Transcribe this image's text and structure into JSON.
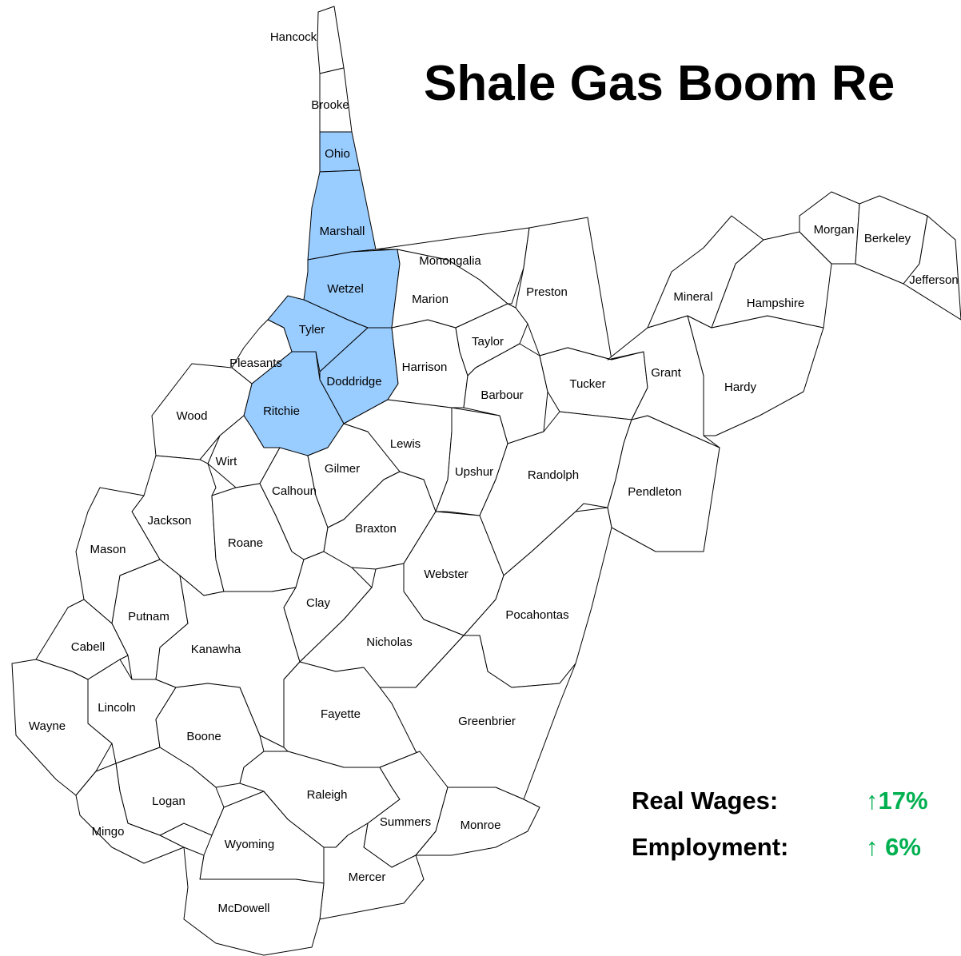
{
  "title": "Shale Gas Boom Re",
  "highlight_color": "#99ccff",
  "base_color": "#ffffff",
  "stats_value_color": "#00b050",
  "stats": [
    {
      "label": "Real Wages:",
      "value": "↑17%"
    },
    {
      "label": "Employment:",
      "value": "↑ 6%"
    }
  ],
  "counties": [
    {
      "name": "Hancock",
      "highlighted": false
    },
    {
      "name": "Brooke",
      "highlighted": false
    },
    {
      "name": "Ohio",
      "highlighted": true
    },
    {
      "name": "Marshall",
      "highlighted": true
    },
    {
      "name": "Wetzel",
      "highlighted": true
    },
    {
      "name": "Tyler",
      "highlighted": true
    },
    {
      "name": "Doddridge",
      "highlighted": true
    },
    {
      "name": "Ritchie",
      "highlighted": true
    },
    {
      "name": "Pleasants",
      "highlighted": false
    },
    {
      "name": "Wood",
      "highlighted": false
    },
    {
      "name": "Wirt",
      "highlighted": false
    },
    {
      "name": "Jackson",
      "highlighted": false
    },
    {
      "name": "Mason",
      "highlighted": false
    },
    {
      "name": "Roane",
      "highlighted": false
    },
    {
      "name": "Calhoun",
      "highlighted": false
    },
    {
      "name": "Gilmer",
      "highlighted": false
    },
    {
      "name": "Lewis",
      "highlighted": false
    },
    {
      "name": "Harrison",
      "highlighted": false
    },
    {
      "name": "Marion",
      "highlighted": false
    },
    {
      "name": "Monongalia",
      "highlighted": false
    },
    {
      "name": "Preston",
      "highlighted": false
    },
    {
      "name": "Taylor",
      "highlighted": false
    },
    {
      "name": "Barbour",
      "highlighted": false
    },
    {
      "name": "Tucker",
      "highlighted": false
    },
    {
      "name": "Upshur",
      "highlighted": false
    },
    {
      "name": "Randolph",
      "highlighted": false
    },
    {
      "name": "Pendleton",
      "highlighted": false
    },
    {
      "name": "Grant",
      "highlighted": false
    },
    {
      "name": "Hardy",
      "highlighted": false
    },
    {
      "name": "Hampshire",
      "highlighted": false
    },
    {
      "name": "Mineral",
      "highlighted": false
    },
    {
      "name": "Morgan",
      "highlighted": false
    },
    {
      "name": "Berkeley",
      "highlighted": false
    },
    {
      "name": "Jefferson",
      "highlighted": false
    },
    {
      "name": "Putnam",
      "highlighted": false
    },
    {
      "name": "Cabell",
      "highlighted": false
    },
    {
      "name": "Wayne",
      "highlighted": false
    },
    {
      "name": "Lincoln",
      "highlighted": false
    },
    {
      "name": "Kanawha",
      "highlighted": false
    },
    {
      "name": "Clay",
      "highlighted": false
    },
    {
      "name": "Braxton",
      "highlighted": false
    },
    {
      "name": "Webster",
      "highlighted": false
    },
    {
      "name": "Nicholas",
      "highlighted": false
    },
    {
      "name": "Pocahontas",
      "highlighted": false
    },
    {
      "name": "Fayette",
      "highlighted": false
    },
    {
      "name": "Greenbrier",
      "highlighted": false
    },
    {
      "name": "Boone",
      "highlighted": false
    },
    {
      "name": "Logan",
      "highlighted": false
    },
    {
      "name": "Mingo",
      "highlighted": false
    },
    {
      "name": "Wyoming",
      "highlighted": false
    },
    {
      "name": "Raleigh",
      "highlighted": false
    },
    {
      "name": "Summers",
      "highlighted": false
    },
    {
      "name": "Monroe",
      "highlighted": false
    },
    {
      "name": "Mercer",
      "highlighted": false
    },
    {
      "name": "McDowell",
      "highlighted": false
    }
  ]
}
